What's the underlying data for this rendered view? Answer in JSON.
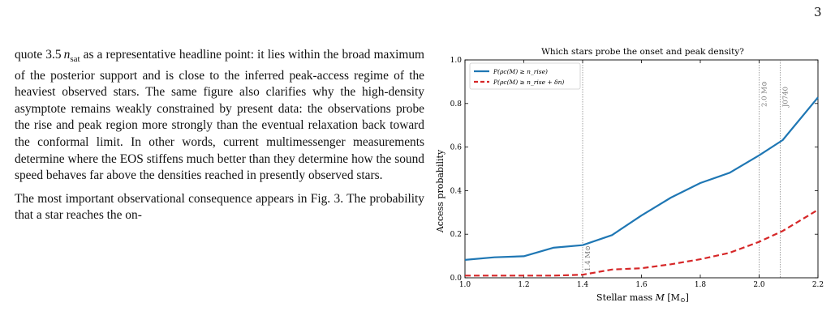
{
  "page": {
    "number": "3"
  },
  "body_text": {
    "paragraph1": "quote 3.5 n_sat as a representative headline point: it lies within the broad maximum of the posterior support and is close to the inferred peak-access regime of the heaviest observed stars. The same figure also clarifies why the high-density asymptote remains weakly constrained by present data: the observations probe the rise and peak region more strongly than the eventual relaxation back toward the conformal limit. In other words, current multimessenger measurements determine where the EOS stiffens much better than they determine how the sound speed behaves far above the densities reached in presently observed stars.",
    "paragraph1_prefix": "quote 3.5",
    "paragraph1_sym": "n",
    "paragraph1_sub": "sat",
    "paragraph1_rest": " as a representative headline point: it lies within the broad maximum of the posterior support and is close to the inferred peak-access regime of the heaviest observed stars. The same figure also clarifies why the high-density asymptote remains weakly constrained by present data: the observations probe the rise and peak region more strongly than the eventual relaxation back toward the conformal limit. In other words, current multimessenger measurements determine where the EOS stiffens much better than they determine how the sound speed behaves far above the densities reached in presently observed stars.",
    "paragraph2": "The most important observational consequence appears in Fig. 3. The probability that a star reaches the on-"
  },
  "chart_data": {
    "type": "line",
    "title": "Which stars probe the onset and peak density?",
    "xlabel": "Stellar mass M [M_⊙]",
    "xlabel_main": "Stellar mass ",
    "xlabel_sym": "M",
    "xlabel_unit": " [M",
    "xlabel_sun": "⊙",
    "xlabel_close": "]",
    "ylabel": "Access probability",
    "xlim": [
      1.0,
      2.2
    ],
    "ylim": [
      0.0,
      1.0
    ],
    "xticks": [
      "1.0",
      "1.2",
      "1.4",
      "1.6",
      "1.8",
      "2.0",
      "2.2"
    ],
    "yticks": [
      "0.0",
      "0.2",
      "0.4",
      "0.6",
      "0.8",
      "1.0"
    ],
    "grid": false,
    "legend_position": "top-left",
    "x": [
      1.0,
      1.1,
      1.2,
      1.3,
      1.4,
      1.5,
      1.6,
      1.7,
      1.8,
      1.9,
      2.0,
      2.08,
      2.2
    ],
    "series": [
      {
        "name": "P(ρc(M) ≥ n_rise)",
        "color": "#1f77b4",
        "dash": "solid",
        "values": [
          0.082,
          0.094,
          0.099,
          0.138,
          0.15,
          0.196,
          0.286,
          0.368,
          0.435,
          0.482,
          0.562,
          0.632,
          0.828
        ]
      },
      {
        "name": "P(ρc(M) ≥ n_rise + δn)",
        "color": "#d62728",
        "dash": "dashed",
        "values": [
          0.01,
          0.01,
          0.01,
          0.01,
          0.014,
          0.038,
          0.044,
          0.062,
          0.085,
          0.115,
          0.165,
          0.215,
          0.312
        ]
      }
    ],
    "reference_lines": [
      {
        "x": 1.4,
        "label": "1.4 M⊙"
      },
      {
        "x": 2.0,
        "label": "2.0 M⊙"
      },
      {
        "x": 2.072,
        "label": "J0740"
      }
    ]
  }
}
